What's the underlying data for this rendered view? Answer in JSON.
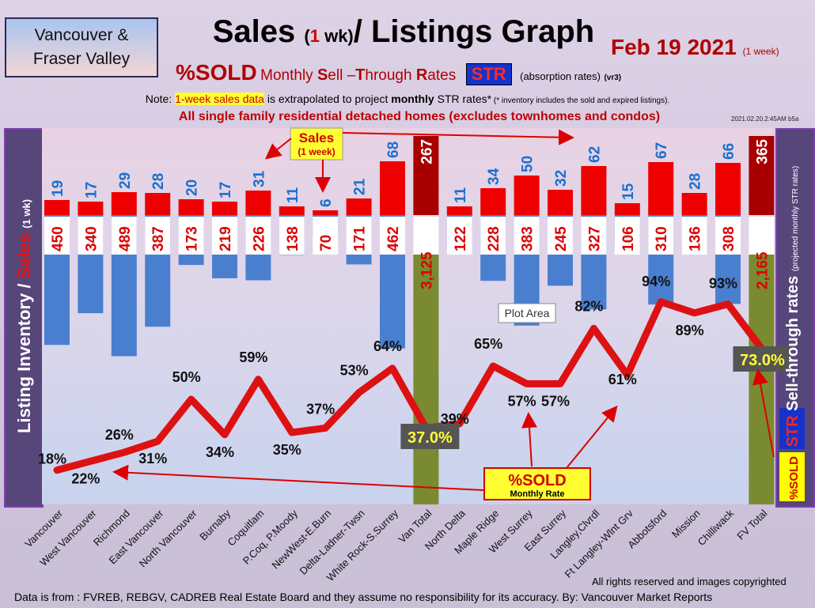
{
  "header": {
    "region_line1": "Vancouver &",
    "region_line2": "Fraser Valley",
    "title_a": "Sales ",
    "title_b": "(",
    "title_c": "1",
    "title_d": " wk)",
    "title_e": "/ Listings Graph",
    "date": "Feb 19  2021",
    "date_note": "(1 week)",
    "sold_label": "%SOLD",
    "monthly": "Monthly ",
    "s": "S",
    "ell": "ell –",
    "t": "T",
    "hrough": "hrough ",
    "r": "R",
    "ates": "ates",
    "str_badge": "STR",
    "absorption": "(absorption rates)",
    "version": "(vr3)",
    "note_prefix": "Note: ",
    "note_highlight": "1-week sales data",
    "note_mid": " is extrapolated to project ",
    "note_bold": "monthly",
    "note_end": " STR rates*",
    "note_tiny": " (* inventory includes the sold and expired listings).",
    "heading2": "All single family residential detached homes (excludes townhomes and condos)",
    "timestamp": "2021.02.20.2:45AM b5a"
  },
  "labels": {
    "left_axis_a": "Listing Inventory",
    "left_axis_slash": "/ ",
    "left_axis_b": "Sales",
    "left_axis_c": " (1 wk)",
    "right_axis_a": "%SOLD",
    "right_axis_b": "STR",
    "right_axis_c": " Sell-through rates",
    "right_axis_d": " (projected monthly STR rates)",
    "sales_callout_1": "Sales",
    "sales_callout_2": "(1 week)",
    "sold_callout_1": "%SOLD",
    "sold_callout_2": "Monthly Rate",
    "plot_area_tooltip": "Plot Area"
  },
  "footer": {
    "rights": "All rights reserved and  images copyrighted",
    "source": "Data is from : FVREB, REBGV, CADREB Real Estate Board and they assume no responsibility for its accuracy. By: Vancouver Market Reports"
  },
  "colors": {
    "sales_bar": "#ee0000",
    "listing_bar": "#4a7fd0",
    "total_bar": "#7a8a30",
    "total_sales_bar": "#a80000",
    "line": "#dd1111",
    "sales_label": "#1a6fd0",
    "listing_label": "#dd0000"
  },
  "chart_data": {
    "type": "bar",
    "title": "Sales (1 wk)/ Listings Graph",
    "categories": [
      "Vancouver",
      "West Vancouver",
      "Richmond",
      "East Vancouver",
      "North Vancouver",
      "Burnaby",
      "Coquitlam",
      "P.Coq, P.Moody",
      "NewWest-E.Burn",
      "Delta-Ladner-Twsn",
      "White Rock-S.Surrey",
      "Van Total",
      "North Delta",
      "Maple Ridge",
      "West Surrey",
      "East Surrey",
      "Langley,Clvrdl",
      "Ft Langley-Wlnt Grv",
      "Abbotsford",
      "Mission",
      "Chilliwack",
      "FV Total"
    ],
    "series": [
      {
        "name": "Sales",
        "values": [
          19,
          17,
          29,
          28,
          20,
          17,
          31,
          11,
          6,
          21,
          68,
          267,
          11,
          34,
          50,
          32,
          62,
          15,
          67,
          28,
          66,
          365
        ]
      },
      {
        "name": "Listing Inventory",
        "values": [
          450,
          340,
          489,
          387,
          173,
          219,
          226,
          138,
          70,
          171,
          462,
          3125,
          122,
          228,
          383,
          245,
          327,
          106,
          310,
          136,
          308,
          2165
        ]
      },
      {
        "name": "%SOLD",
        "values": [
          18,
          22,
          26,
          31,
          50,
          34,
          59,
          35,
          37,
          53,
          64,
          37.0,
          39,
          65,
          57,
          57,
          82,
          61,
          94,
          89,
          93,
          73.0
        ]
      }
    ],
    "sales_labels": [
      "19",
      "17",
      "29",
      "28",
      "20",
      "17",
      "31",
      "11",
      "6",
      "21",
      "68",
      "267",
      "11",
      "34",
      "50",
      "32",
      "62",
      "15",
      "67",
      "28",
      "66",
      "365"
    ],
    "listing_labels": [
      "450",
      "340",
      "489",
      "387",
      "173",
      "219",
      "226",
      "138",
      "70",
      "171",
      "462",
      "3,125",
      "122",
      "228",
      "383",
      "245",
      "327",
      "106",
      "310",
      "136",
      "308",
      "2,165"
    ],
    "percent_labels": [
      "18%",
      "22%",
      "26%",
      "31%",
      "50%",
      "34%",
      "59%",
      "35%",
      "37%",
      "53%",
      "64%",
      "37.0%",
      "39%",
      "65%",
      "57%",
      "57%",
      "82%",
      "61%",
      "94%",
      "89%",
      "93%",
      "73.0%"
    ],
    "totals": [
      "Van Total",
      "FV Total"
    ],
    "grid": false
  }
}
